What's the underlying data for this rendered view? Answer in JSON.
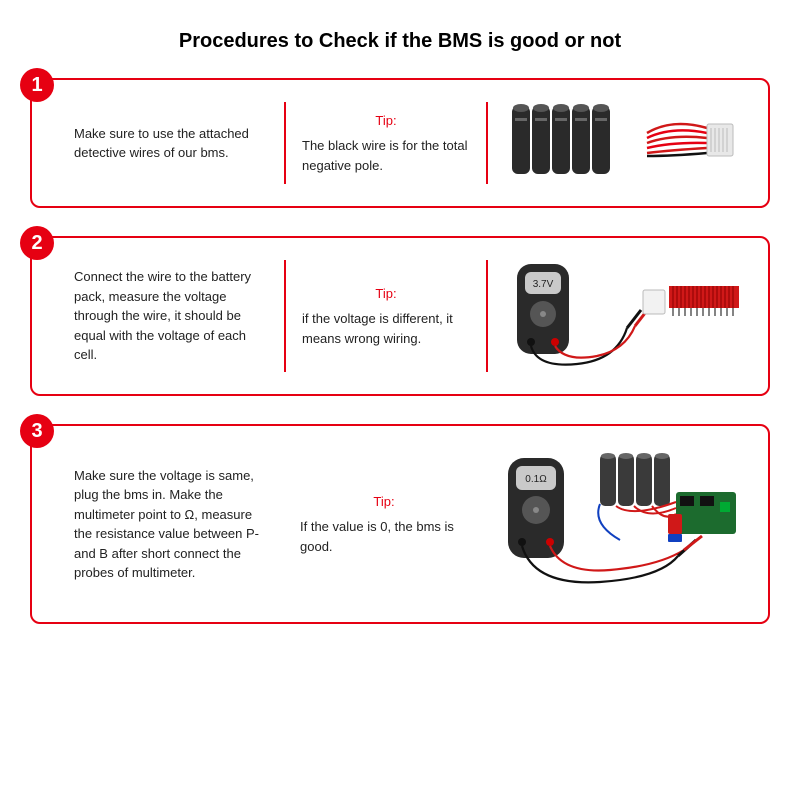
{
  "title": "Procedures to Check if the BMS is good or not",
  "colors": {
    "accent": "#e60012",
    "border": "#e60012",
    "badge_bg": "#e60012",
    "divider": "#e60012",
    "tip_label": "#e60012",
    "text": "#222222",
    "card_bg": "#ffffff",
    "page_bg": "#ffffff"
  },
  "layout": {
    "card_border_width": 2,
    "card_border_radius": 10,
    "badge_diameter": 34,
    "font_body": 13,
    "font_title": 20
  },
  "steps": [
    {
      "num": "1",
      "instruction": "Make sure to use the attached detective wires of our bms.",
      "tip_label": "Tip:",
      "tip": "The black wire is for the total negative pole.",
      "illus": "battery-and-wires",
      "illus_label": ""
    },
    {
      "num": "2",
      "instruction": "Connect the wire to the battery pack, measure the voltage through the wire, it should be equal with the voltage of each cell.",
      "tip_label": "Tip:",
      "tip": "if the voltage is different, it means wrong wiring.",
      "illus": "meter-to-connector",
      "illus_label": "3.7V"
    },
    {
      "num": "3",
      "instruction": "Make sure the voltage is same, plug the bms in. Make the multimeter point to Ω, measure the resistance value between P- and B after short connect the probes of multimeter.",
      "tip_label": "Tip:",
      "tip": " If the value is 0, the bms is good.",
      "illus": "meter-to-bms",
      "illus_label": "0.1Ω"
    }
  ]
}
